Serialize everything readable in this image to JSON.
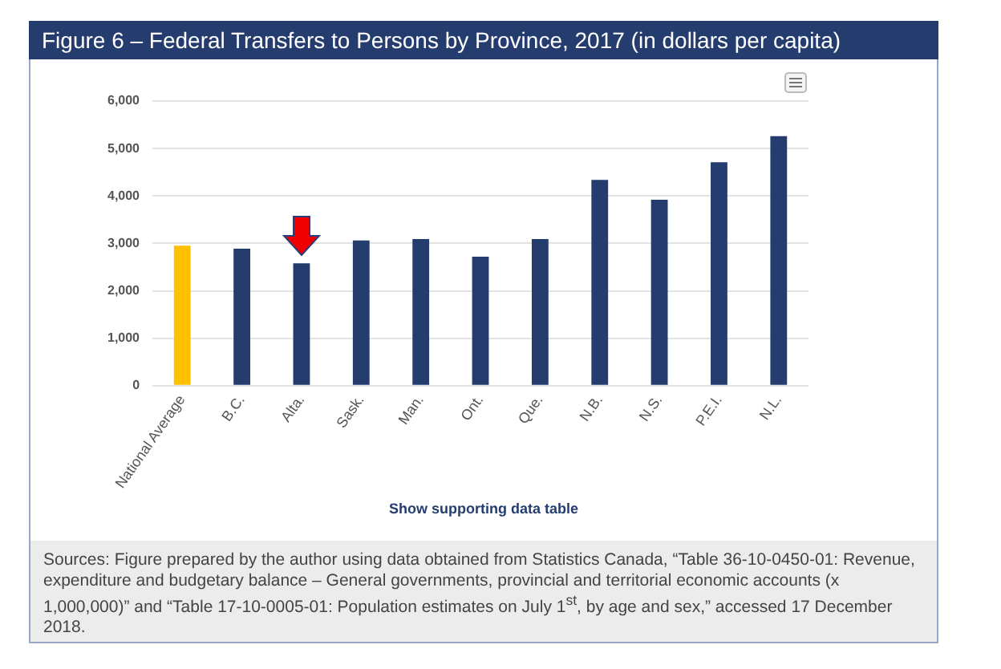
{
  "chart_data": {
    "type": "bar",
    "title": "Figure 6 – Federal Transfers to Persons by Province, 2017 (in dollars per capita)",
    "categories": [
      "National Average",
      "B.C.",
      "Alta.",
      "Sask.",
      "Man.",
      "Ont.",
      "Que.",
      "N.B.",
      "N.S.",
      "P.E.I.",
      "N.L."
    ],
    "values": [
      2950,
      2890,
      2580,
      3060,
      3090,
      2720,
      3090,
      4340,
      3920,
      4710,
      5260
    ],
    "colors": [
      "#ffc000",
      "#253d6e",
      "#253d6e",
      "#253d6e",
      "#253d6e",
      "#253d6e",
      "#253d6e",
      "#253d6e",
      "#253d6e",
      "#253d6e",
      "#253d6e"
    ],
    "ylim": [
      0,
      6000
    ],
    "yticks": [
      {
        "value": 0,
        "label": "0"
      },
      {
        "value": 1000,
        "label": "1,000"
      },
      {
        "value": 2000,
        "label": "2,000"
      },
      {
        "value": 3000,
        "label": "3,000"
      },
      {
        "value": 4000,
        "label": "4,000"
      },
      {
        "value": 5000,
        "label": "5,000"
      },
      {
        "value": 6000,
        "label": "6,000"
      }
    ],
    "grid": "y",
    "legend": false,
    "annotations": [
      "Show supporting data table",
      "Sources: Figure prepared by the author using data obtained from Statistics Canada, “Table 36-10-0450-01: Revenue, expenditure and budgetary balance – General governments, provincial and territorial economic accounts (x 1,000,000)” and “Table 17-10-0005-01: Population estimates on July 1$^{st}$, by age and sex,” accessed 17 December 2018."
    ]
  }
}
